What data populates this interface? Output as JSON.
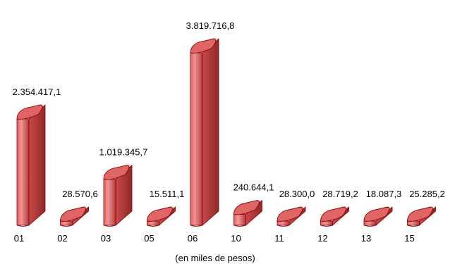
{
  "chart_data": {
    "type": "bar",
    "style": "3d-cylinder",
    "categories": [
      "01",
      "02",
      "03",
      "05",
      "06",
      "10",
      "11",
      "12",
      "13",
      "15"
    ],
    "values": [
      2354417.1,
      28570.6,
      1019345.7,
      15511.1,
      3819716.8,
      240644.1,
      28300.0,
      28719.2,
      18087.3,
      25285.2
    ],
    "data_labels": [
      "2.354.417,1",
      "28.570,6",
      "1.019.345,7",
      "15.511,1",
      "3.819.716,8",
      "240.644,1",
      "28.300,0",
      "28.719,2",
      "18.087,3",
      "25.285,2"
    ],
    "note": "(en miles de pesos)",
    "ylim": [
      0,
      3819716.8
    ],
    "grid": false,
    "legend": "none",
    "colors": {
      "front": "#f08080",
      "side": "#c0504d",
      "top": "#e06666",
      "stroke": "#8b0000"
    }
  }
}
